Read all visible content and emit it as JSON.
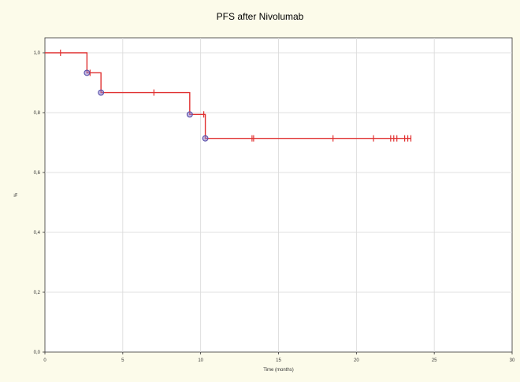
{
  "chart_data": {
    "type": "line",
    "subtype": "kaplan-meier",
    "title": "PFS after Nivolumab",
    "xlabel": "Time (months)",
    "ylabel": "%",
    "xlim": [
      0,
      30
    ],
    "ylim": [
      0,
      1.05
    ],
    "xticks": [
      "0",
      "5",
      "10",
      "15",
      "20",
      "25",
      "30"
    ],
    "yticks": [
      "0,0",
      "0,2",
      "0,4",
      "0,6",
      "0,8",
      "1,0"
    ],
    "grid": true,
    "colors": {
      "curve": "#e03030",
      "event_marker": "#5a4fa8",
      "background": "#fcfbea",
      "plot_area": "#ffffff",
      "grid": "#d8d8d8"
    },
    "series": [
      {
        "steps": [
          {
            "x": 0,
            "y": 1.0
          },
          {
            "x": 2.7,
            "y": 0.933
          },
          {
            "x": 3.6,
            "y": 0.867
          },
          {
            "x": 9.3,
            "y": 0.794
          },
          {
            "x": 10.3,
            "y": 0.714
          }
        ],
        "end_x": 23.5,
        "events": [
          {
            "x": 2.7,
            "y": 0.933
          },
          {
            "x": 3.6,
            "y": 0.867
          },
          {
            "x": 9.3,
            "y": 0.794
          },
          {
            "x": 10.3,
            "y": 0.714
          }
        ],
        "censored": [
          {
            "x": 1.0,
            "y": 1.0
          },
          {
            "x": 2.9,
            "y": 0.933
          },
          {
            "x": 7.0,
            "y": 0.867
          },
          {
            "x": 10.2,
            "y": 0.794
          },
          {
            "x": 13.3,
            "y": 0.714
          },
          {
            "x": 13.4,
            "y": 0.714
          },
          {
            "x": 18.5,
            "y": 0.714
          },
          {
            "x": 21.1,
            "y": 0.714
          },
          {
            "x": 22.2,
            "y": 0.714
          },
          {
            "x": 22.4,
            "y": 0.714
          },
          {
            "x": 22.6,
            "y": 0.714
          },
          {
            "x": 23.1,
            "y": 0.714
          },
          {
            "x": 23.3,
            "y": 0.714
          },
          {
            "x": 23.5,
            "y": 0.714
          }
        ]
      }
    ]
  }
}
